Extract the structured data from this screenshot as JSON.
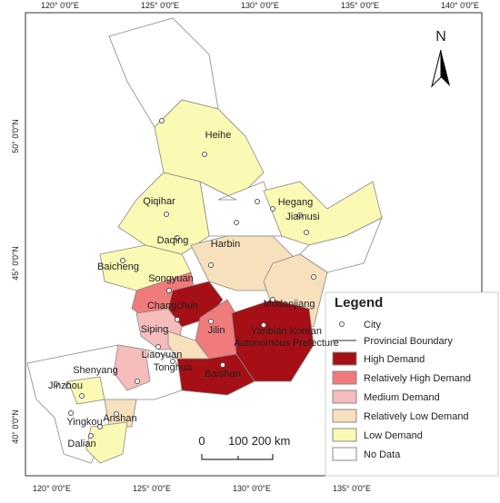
{
  "map": {
    "top_ticks": [
      "120° 0′0″E",
      "125° 0′0″E",
      "130° 0′0″E",
      "135° 0′0″E",
      "140° 0′0″E"
    ],
    "bottom_ticks": [
      "120° 0′0″E",
      "125° 0′0″E",
      "130° 0′0″E",
      "135° 0′0″E"
    ],
    "left_ticks": [
      "50° 0′0″N",
      "45° 0′0″N",
      "40° 0′0″N"
    ],
    "north": "N",
    "cities": [
      "Heihe",
      "Qiqihar",
      "Daqing",
      "Hegang",
      "Jiamusi",
      "Baicheng",
      "Harbin",
      "Songyuan",
      "Mudanjiang",
      "Changchun",
      "Jilin",
      "Siping",
      "Yanbian Korean",
      "Autonomous Prefecture",
      "Liaoyuan",
      "Tonghua",
      "Baishan",
      "Shenyang",
      "Jinzhou",
      "Anshan",
      "Yingkou",
      "Dalian"
    ],
    "scale": [
      "0",
      "100",
      "200 km"
    ]
  },
  "legend": {
    "title": "Legend",
    "city": "City",
    "boundary": "Provincial Boundary",
    "items": [
      {
        "label": "High Demand",
        "color": "#a50f15"
      },
      {
        "label": "Relatively High Demand",
        "color": "#ef7b7b"
      },
      {
        "label": "Medium Demand",
        "color": "#f7bcbc"
      },
      {
        "label": "Relatively Low Demand",
        "color": "#f7e0bc"
      },
      {
        "label": "Low Demand",
        "color": "#fafab4"
      },
      {
        "label": "No Data",
        "color": "#ffffff"
      }
    ]
  }
}
